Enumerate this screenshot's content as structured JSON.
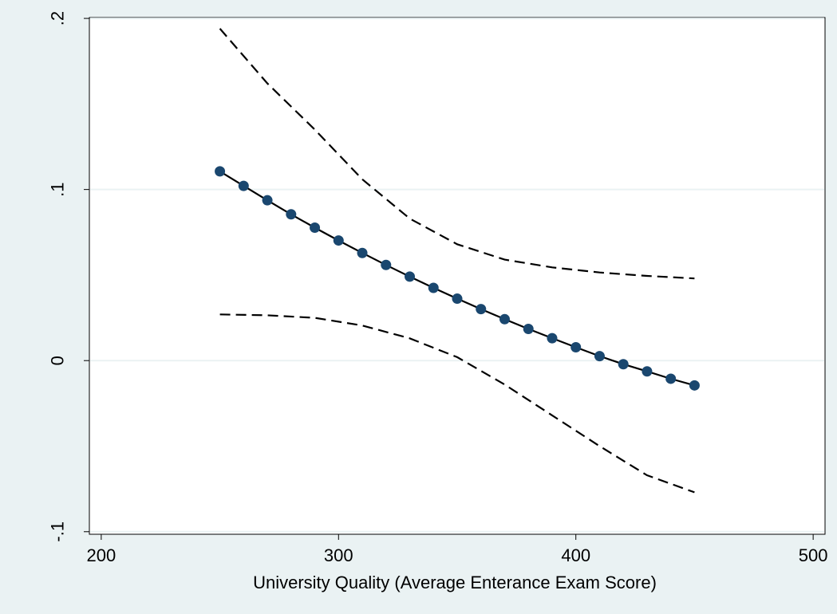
{
  "chart_data": {
    "type": "line",
    "title": "",
    "xlabel": "University Quality (Average Enterance Exam Score)",
    "ylabel": "",
    "xlim": [
      195,
      505
    ],
    "ylim": [
      -0.1015,
      0.2005
    ],
    "x_ticks": [
      200,
      300,
      400,
      500
    ],
    "x_tick_labels": [
      "200",
      "300",
      "400",
      "500"
    ],
    "y_ticks": [
      -0.1,
      0,
      0.1,
      0.2
    ],
    "y_tick_labels": [
      "-.1",
      "0",
      ".1",
      ".2"
    ],
    "grid": "horizontal",
    "legend": "none",
    "series": [
      {
        "style": "line-with-markers",
        "color": "#1a476f",
        "x": [
          250,
          260,
          270,
          280,
          290,
          300,
          310,
          320,
          330,
          340,
          350,
          360,
          370,
          380,
          390,
          400,
          410,
          420,
          430,
          440,
          450
        ],
        "y": [
          0.1106,
          0.1021,
          0.0937,
          0.0855,
          0.0777,
          0.0702,
          0.0629,
          0.0559,
          0.0491,
          0.0425,
          0.0362,
          0.0301,
          0.0242,
          0.0185,
          0.0131,
          0.0078,
          0.0026,
          -0.0021,
          -0.0063,
          -0.0106,
          -0.0145
        ]
      },
      {
        "style": "dashed",
        "color": "#000000",
        "x": [
          250,
          270,
          290,
          310,
          330,
          350,
          370,
          390,
          410,
          430,
          450
        ],
        "y": [
          0.194,
          0.162,
          0.135,
          0.106,
          0.083,
          0.068,
          0.059,
          0.0545,
          0.0515,
          0.0495,
          0.048
        ]
      },
      {
        "style": "dashed",
        "color": "#000000",
        "x": [
          250,
          270,
          290,
          310,
          330,
          350,
          370,
          390,
          410,
          430,
          450
        ],
        "y": [
          0.027,
          0.0265,
          0.025,
          0.0205,
          0.013,
          0.002,
          -0.014,
          -0.032,
          -0.05,
          -0.067,
          -0.077
        ]
      }
    ],
    "colors": {
      "background": "#eaf2f3",
      "plot_background": "#ffffff",
      "grid": "#eaf2f3",
      "fit_line": "#000000",
      "markers": "#1a476f",
      "confidence_band": "#000000"
    }
  }
}
